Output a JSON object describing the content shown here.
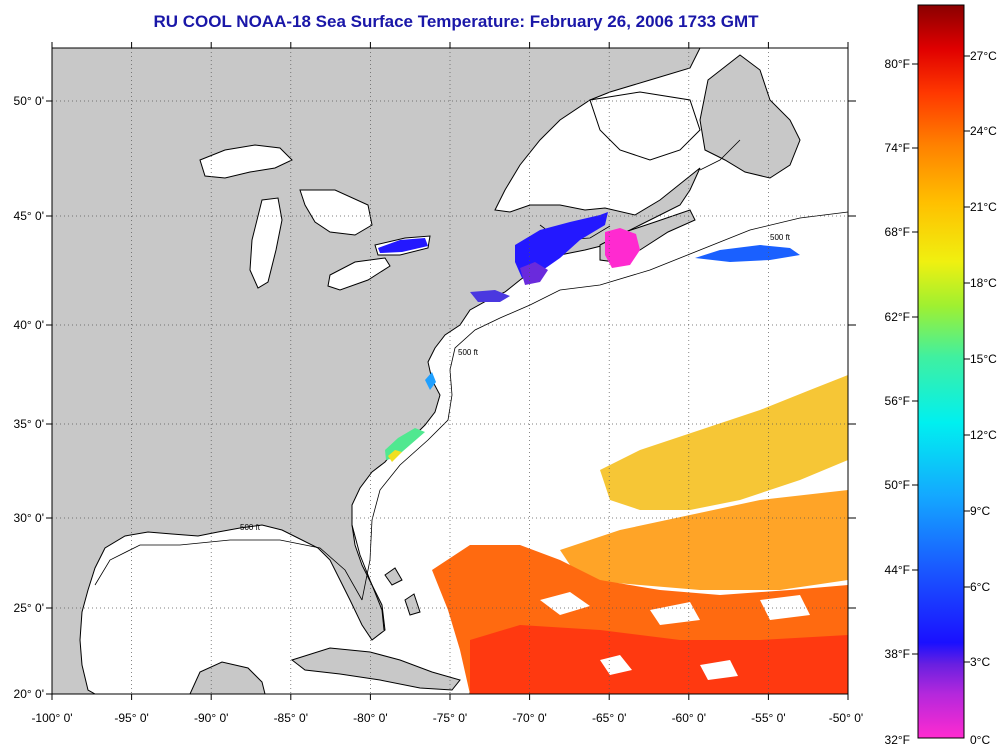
{
  "title": "RU COOL  NOAA-18  Sea Surface Temperature:  February 26, 2006 1733 GMT",
  "map": {
    "longitude_ticks": [
      "-100° 0'",
      "-95° 0'",
      "-90° 0'",
      "-85° 0'",
      "-80° 0'",
      "-75° 0'",
      "-70° 0'",
      "-65° 0'",
      "-60° 0'",
      "-55° 0'",
      "-50° 0'"
    ],
    "latitude_ticks": [
      "50° 0'",
      "45° 0'",
      "40° 0'",
      "35° 0'",
      "30° 0'",
      "25° 0'",
      "20° 0'"
    ],
    "longitude_range": [
      -100,
      -50
    ],
    "latitude_range": [
      20,
      52.5
    ],
    "land_color": "#c8c8c8",
    "ocean_color": "#ffffff",
    "grid": "dotted",
    "contour_label": "500 ft"
  },
  "colorbar": {
    "fahrenheit_labels": [
      "80°F",
      "74°F",
      "68°F",
      "62°F",
      "56°F",
      "50°F",
      "44°F",
      "38°F",
      "32°F"
    ],
    "celsius_labels": [
      "27°C",
      "24°C",
      "21°C",
      "18°C",
      "15°C",
      "12°C",
      "9°C",
      "6°C",
      "3°C",
      "0°C"
    ],
    "celsius_range": [
      0,
      29
    ],
    "colors": [
      "#ff2ad0",
      "#9a28d8",
      "#1a10ff",
      "#1a70ff",
      "#10c0ff",
      "#00f0f0",
      "#30f0a0",
      "#90f040",
      "#f0f010",
      "#ffc000",
      "#ff8a00",
      "#ff5000",
      "#ff1800",
      "#c00000",
      "#8a0000"
    ]
  }
}
